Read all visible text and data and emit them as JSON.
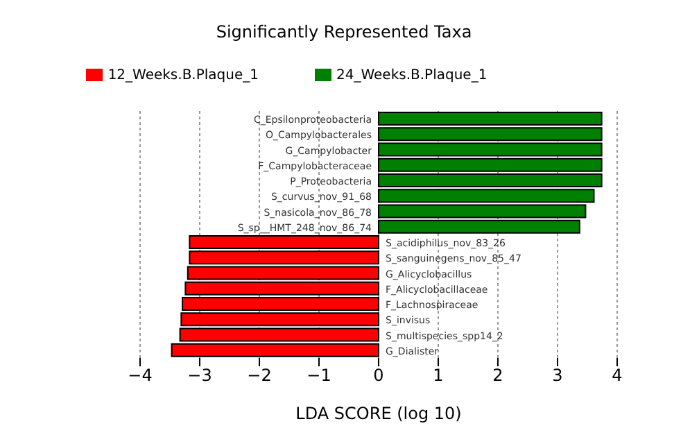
{
  "chart_data": {
    "type": "bar",
    "orientation": "horizontal",
    "stacked": true,
    "title": "Significantly Represented Taxa",
    "xlabel": "LDA SCORE (log 10)",
    "categories": [
      "C_Epsilonproteobacteria",
      "O_Campylobacterales",
      "G_Campylobacter",
      "F_Campylobacteraceae",
      "P_Proteobacteria",
      "S_curvus_nov_91_68",
      "S_nasicola_nov_86_78",
      "S_sp__HMT_248_nov_86_74",
      "S_acidiphilus_nov_83_26",
      "S_sanguinegens_nov_85_47",
      "G_Alicyclobacillus",
      "F_Alicyclobacillaceae",
      "F_Lachnospiraceae",
      "S_invisus",
      "S_multispecies_spp14_2",
      "G_Dialister"
    ],
    "series": [
      {
        "name": "12_Weeks.B.Plaque_1",
        "color": "#ff0000",
        "values": [
          null,
          null,
          null,
          null,
          null,
          null,
          null,
          null,
          -3.17,
          -3.17,
          -3.2,
          -3.24,
          -3.29,
          -3.31,
          -3.33,
          -3.47
        ]
      },
      {
        "name": "24_Weeks.B.Plaque_1",
        "color": "#008000",
        "values": [
          3.74,
          3.74,
          3.74,
          3.74,
          3.74,
          3.61,
          3.47,
          3.37,
          null,
          null,
          null,
          null,
          null,
          null,
          null,
          null
        ]
      }
    ],
    "xlim": [
      -4,
      4
    ],
    "xticks": [
      {
        "value": -4,
        "label": "−4"
      },
      {
        "value": -3,
        "label": "−3"
      },
      {
        "value": -2,
        "label": "−2"
      },
      {
        "value": -1,
        "label": "−1"
      },
      0,
      1,
      2,
      3,
      4
    ],
    "grid": "x",
    "legend": "top"
  }
}
